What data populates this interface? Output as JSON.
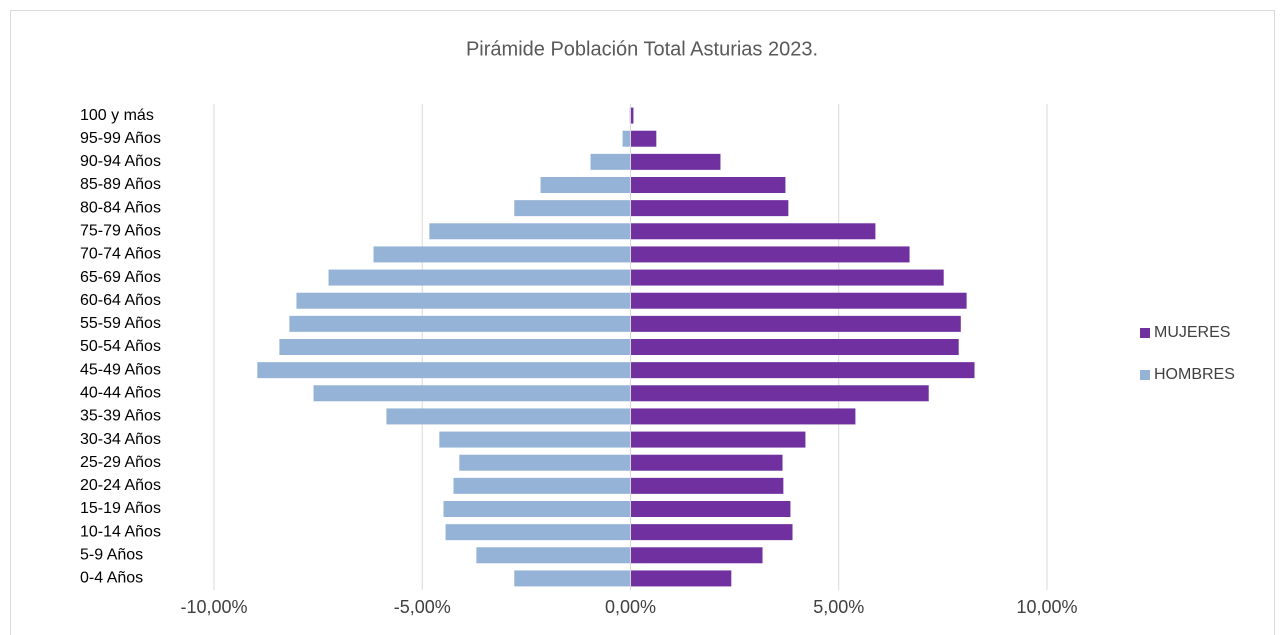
{
  "chart_data": {
    "type": "bar",
    "orientation": "horizontal",
    "stacked": true,
    "title": "Pirámide Población Total Asturias 2023.",
    "categories": [
      "0-4 Años",
      "5-9 Años",
      "10-14 Años",
      "15-19 Años",
      "20-24 Años",
      "25-29 Años",
      "30-34 Años",
      "35-39 Años",
      "40-44 Años",
      "45-49 Años",
      "50-54 Años",
      "55-59 Años",
      "60-64 Años",
      "65-69 Años",
      "70-74 Años",
      "75-79 Años",
      "80-84 Años",
      "85-89 Años",
      "90-94 Años",
      "95-99 Años",
      "100 y más"
    ],
    "series": [
      {
        "name": "MUJERES",
        "color": "#7030a0",
        "values": [
          2.42,
          3.17,
          3.89,
          3.84,
          3.67,
          3.65,
          4.2,
          5.4,
          7.16,
          8.26,
          7.88,
          7.93,
          8.07,
          7.52,
          6.7,
          5.88,
          3.79,
          3.72,
          2.16,
          0.62,
          0.07
        ]
      },
      {
        "name": "HOMBRES",
        "color": "#95b3d7",
        "values": [
          -2.79,
          -3.7,
          -4.44,
          -4.49,
          -4.25,
          -4.11,
          -4.59,
          -5.86,
          -7.61,
          -8.96,
          -8.43,
          -8.19,
          -8.02,
          -7.25,
          -6.17,
          -4.83,
          -2.79,
          -2.16,
          -0.96,
          -0.19,
          -0.02
        ]
      }
    ],
    "xlim": [
      -10,
      10
    ],
    "xticks": [
      {
        "value": -10,
        "label": "-10,00%"
      },
      {
        "value": -5,
        "label": "-5,00%"
      },
      {
        "value": 0,
        "label": "0,00%"
      },
      {
        "value": 5,
        "label": "5,00%"
      },
      {
        "value": 10,
        "label": "10,00%"
      }
    ],
    "grid": true,
    "legend": "right"
  }
}
